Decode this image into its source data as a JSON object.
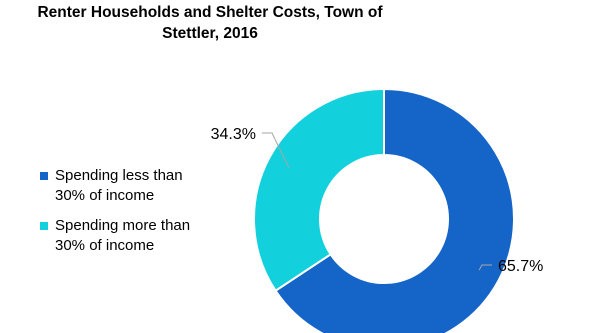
{
  "chart_data": {
    "type": "pie",
    "title_lines": [
      "Renter Households and Shelter Costs, Town of",
      "Stettler, 2016"
    ],
    "categories": [
      "Spending less than 30% of income",
      "Spending more than 30% of income"
    ],
    "values": [
      65.7,
      34.3
    ],
    "data_labels": [
      "65.7%",
      "34.3%"
    ],
    "colors": [
      "#1565C8",
      "#12D1DC"
    ],
    "donut": true,
    "legend_position": "left"
  }
}
